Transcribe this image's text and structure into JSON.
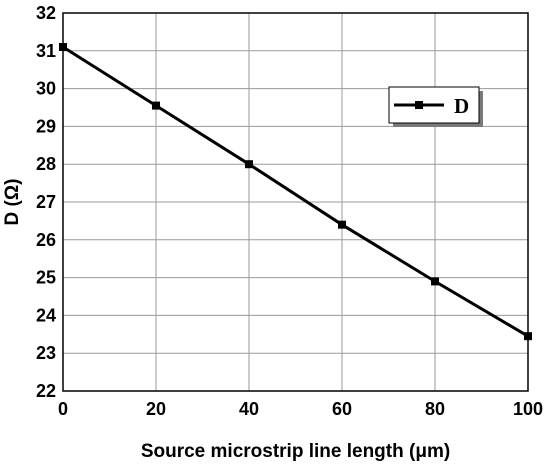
{
  "chart_data": {
    "type": "line",
    "xlabel": "Source  microstrip line length (μm)",
    "ylabel": "D (Ω)",
    "xlim": [
      0,
      100
    ],
    "ylim": [
      22,
      32
    ],
    "xticks": [
      "0",
      "20",
      "40",
      "60",
      "80",
      "100"
    ],
    "yticks": [
      "22",
      "23",
      "24",
      "25",
      "26",
      "27",
      "28",
      "29",
      "30",
      "31",
      "32"
    ],
    "grid": true,
    "legend_position": "top-right",
    "series": [
      {
        "name": "D",
        "color": "#000000",
        "marker": "square",
        "x": [
          0,
          20,
          40,
          60,
          80,
          100
        ],
        "y": [
          31.1,
          29.55,
          28.0,
          26.4,
          24.9,
          23.45
        ]
      }
    ]
  }
}
